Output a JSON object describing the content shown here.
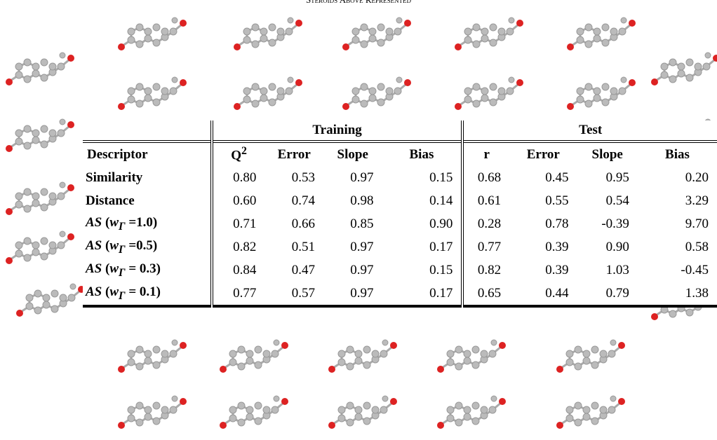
{
  "caption": "Steroids above represented",
  "table": {
    "groups": [
      "Training",
      "Test"
    ],
    "columns": [
      "Descriptor",
      [
        "Q",
        "2"
      ],
      "Error",
      "Slope",
      "Bias",
      "r",
      "Error",
      "Slope",
      "Bias"
    ],
    "rows": [
      {
        "label": "Similarity",
        "values": [
          "0.80",
          "0.53",
          "0.97",
          "0.15",
          "0.68",
          "0.45",
          "0.95",
          "0.20"
        ]
      },
      {
        "label": "Distance",
        "values": [
          "0.60",
          "0.74",
          "0.98",
          "0.14",
          "0.61",
          "0.55",
          "0.54",
          "3.29"
        ]
      },
      {
        "label": [
          "AS",
          " (",
          "w",
          "Γ",
          " =1.0)"
        ],
        "values": [
          "0.71",
          "0.66",
          "0.85",
          "0.90",
          "0.28",
          "0.78",
          "-0.39",
          "9.70"
        ]
      },
      {
        "label": [
          "AS",
          " (",
          "w",
          "Γ",
          " =0.5)"
        ],
        "values": [
          "0.82",
          "0.51",
          "0.97",
          "0.17",
          "0.77",
          "0.39",
          "0.90",
          "0.58"
        ]
      },
      {
        "label": [
          "AS",
          " (",
          "w",
          "Γ",
          " = 0.3)"
        ],
        "values": [
          "0.84",
          "0.47",
          "0.97",
          "0.15",
          "0.82",
          "0.39",
          "1.03",
          "-0.45"
        ]
      },
      {
        "label": [
          "AS",
          " (",
          "w",
          "Γ",
          " = 0.1)"
        ],
        "values": [
          "0.77",
          "0.57",
          "0.97",
          "0.17",
          "0.65",
          "0.44",
          "0.79",
          "1.38"
        ]
      }
    ]
  }
}
